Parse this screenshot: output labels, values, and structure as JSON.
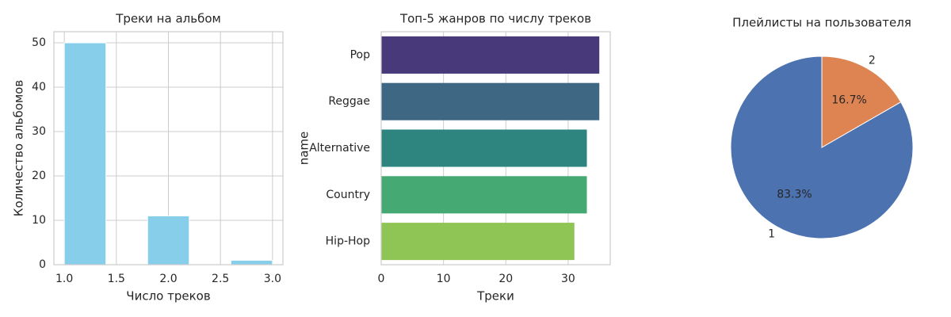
{
  "chart_data": [
    {
      "type": "histogram",
      "title": "Треки на альбом",
      "xlabel": "Число треков",
      "ylabel": "Количество альбомов",
      "bins": [
        1.0,
        1.4,
        1.8,
        2.2,
        2.6,
        3.0
      ],
      "values": [
        50,
        0,
        11,
        0,
        1
      ],
      "color": "#87ceeb",
      "xlim": [
        0.9,
        3.1
      ],
      "ylim": [
        0,
        52.5
      ],
      "xticks": [
        {
          "value": 1.0,
          "label": "1.0"
        },
        {
          "value": 1.5,
          "label": "1.5"
        },
        {
          "value": 2.0,
          "label": "2.0"
        },
        {
          "value": 2.5,
          "label": "2.5"
        },
        {
          "value": 3.0,
          "label": "3.0"
        }
      ],
      "yticks": [
        0,
        10,
        20,
        30,
        40,
        50
      ],
      "grid": true
    },
    {
      "type": "barh",
      "title": "Топ-5 жанров по числу треков",
      "xlabel": "Треки",
      "ylabel": "name",
      "categories": [
        "Pop",
        "Reggae",
        "Alternative",
        "Country",
        "Hip-Hop"
      ],
      "values": [
        35,
        35,
        33,
        33,
        31
      ],
      "colors": [
        "#48397a",
        "#3e6783",
        "#2e8580",
        "#45a974",
        "#8fc555"
      ],
      "xlim": [
        0,
        36.75
      ],
      "xticks": [
        0,
        10,
        20,
        30
      ],
      "grid": true
    },
    {
      "type": "pie",
      "title": "Плейлисты на пользователя",
      "categories": [
        "1",
        "2"
      ],
      "values": [
        83.3,
        16.7
      ],
      "value_labels": [
        "83.3%",
        "16.7%"
      ],
      "colors": [
        "#4c72b0",
        "#dd8452"
      ]
    }
  ]
}
